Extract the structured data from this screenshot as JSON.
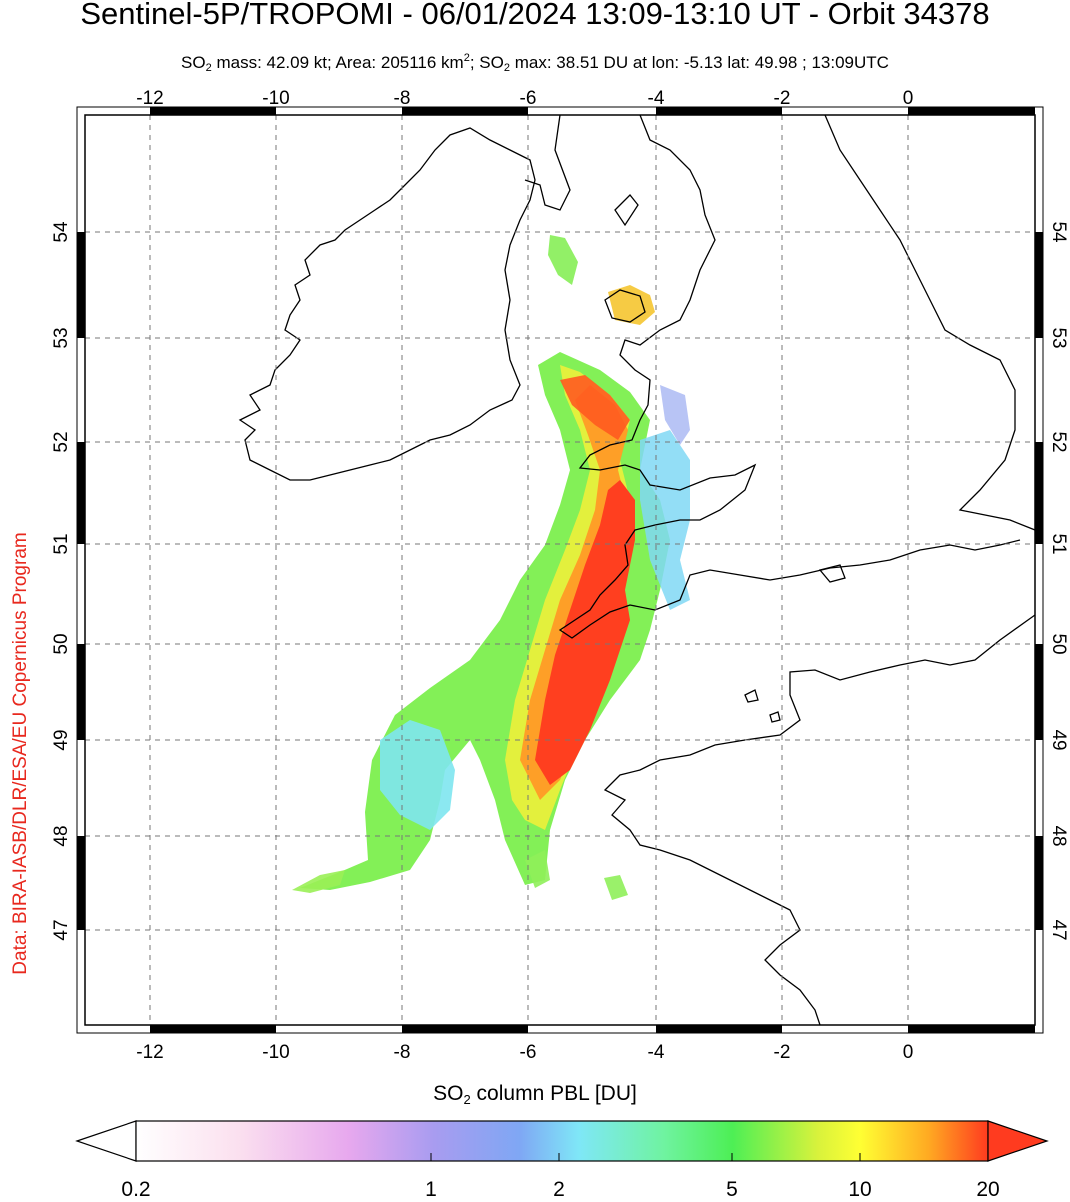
{
  "header": {
    "title": "Sentinel-5P/TROPOMI - 06/01/2024 13:09-13:10 UT - Orbit 34378",
    "subtitle_parts": {
      "mass_prefix": "SO",
      "mass_sub": "2",
      "mass_text": " mass: 42.09 kt; Area: 205116 km",
      "area_sup": "2",
      "max_prefix": "; SO",
      "max_sub": "2",
      "max_text": " max: 38.51 DU at lon: -5.13 lat: 49.98 ; 13:09UTC"
    }
  },
  "credit": "Data: BIRA-IASB/DLR/ESA/EU Copernicus Program",
  "map": {
    "lon_ticks": [
      "-12",
      "-10",
      "-8",
      "-6",
      "-4",
      "-2",
      "0"
    ],
    "lat_ticks": [
      "47",
      "48",
      "49",
      "50",
      "51",
      "52",
      "53",
      "54"
    ],
    "lon_range": [
      -13.2,
      2.2
    ],
    "lat_range": [
      46.0,
      55.2
    ],
    "grid": "dashed",
    "max_point": {
      "lon": -5.13,
      "lat": 49.98,
      "value_du": 38.51
    }
  },
  "colorbar": {
    "title_prefix": "SO",
    "title_sub": "2",
    "title_text": " column PBL [DU]",
    "tick_labels": [
      "0.2",
      "1",
      "2",
      "5",
      "10",
      "20"
    ],
    "scale": "log",
    "range": [
      0.2,
      20
    ],
    "colors": [
      "#ffffff",
      "#f9c8e6",
      "#d88ff0",
      "#8c95f2",
      "#7fe0f7",
      "#7ff5b0",
      "#5ef05a",
      "#c8f04a",
      "#ffff33",
      "#ffaa22",
      "#ff4422"
    ]
  }
}
